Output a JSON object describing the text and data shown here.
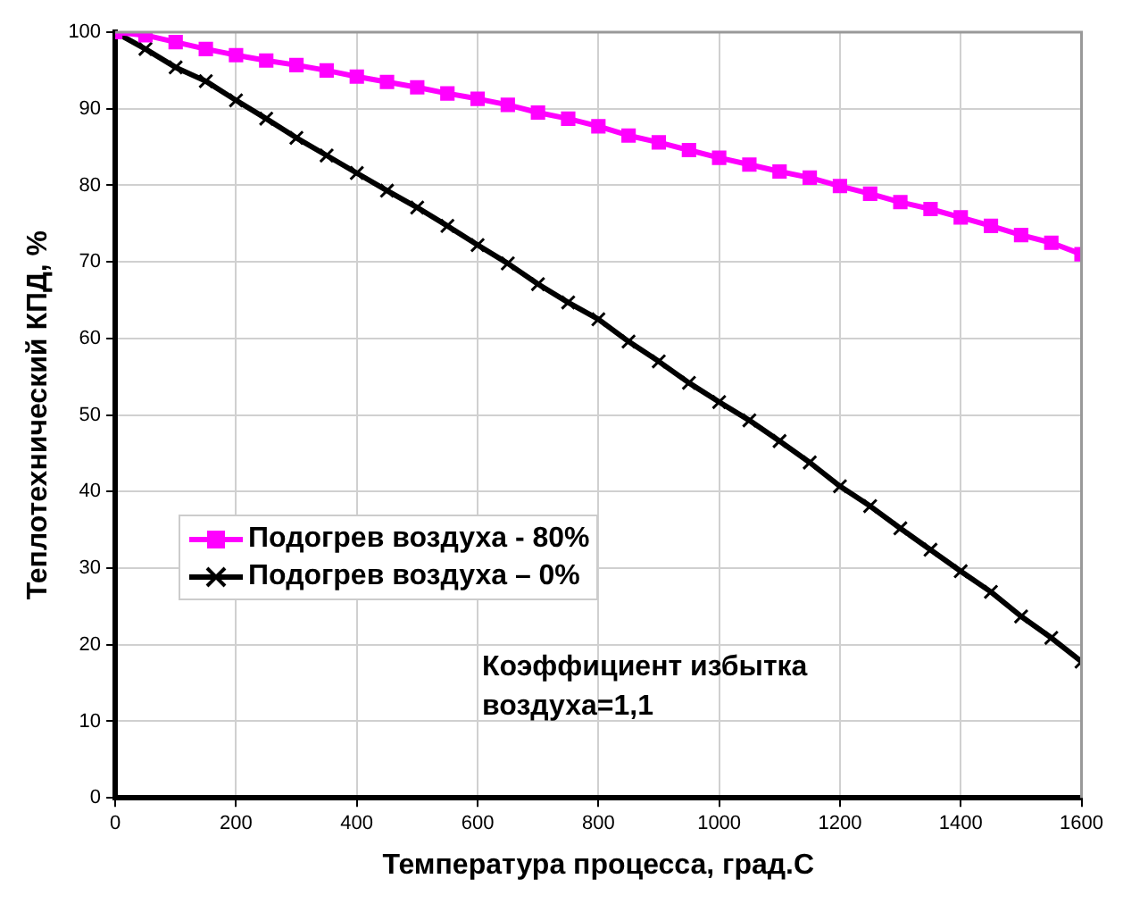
{
  "chart_data": {
    "type": "line",
    "xlabel": "Температура процесса, град.С",
    "ylabel": "Теплотехнический КПД, %",
    "x": [
      0,
      50,
      100,
      150,
      200,
      250,
      300,
      350,
      400,
      450,
      500,
      550,
      600,
      650,
      700,
      750,
      800,
      850,
      900,
      950,
      1000,
      1050,
      1100,
      1150,
      1200,
      1250,
      1300,
      1350,
      1400,
      1450,
      1500,
      1550,
      1600
    ],
    "series": [
      {
        "name": "Подогрев воздуха - 80%",
        "color": "#ff00ff",
        "marker": "square",
        "values": [
          100,
          99.6,
          98.7,
          97.8,
          97,
          96.3,
          95.7,
          95,
          94.2,
          93.5,
          92.8,
          92,
          91.3,
          90.5,
          89.5,
          88.7,
          87.7,
          86.5,
          85.6,
          84.6,
          83.6,
          82.7,
          81.8,
          81,
          79.9,
          78.9,
          77.8,
          76.9,
          75.8,
          74.7,
          73.5,
          72.5,
          71
        ]
      },
      {
        "name": "Подогрев воздуха – 0%",
        "color": "#000000",
        "marker": "cross",
        "values": [
          100,
          97.8,
          95.4,
          93.6,
          91.1,
          88.7,
          86.2,
          83.9,
          81.6,
          79.3,
          77.1,
          74.7,
          72.2,
          69.8,
          67.1,
          64.7,
          62.5,
          59.6,
          57,
          54.2,
          51.7,
          49.3,
          46.6,
          43.8,
          40.7,
          38.1,
          35.2,
          32.4,
          29.6,
          26.9,
          23.7,
          20.9,
          17.8
        ]
      }
    ],
    "xlim": [
      0,
      1600
    ],
    "xticks": [
      0,
      200,
      400,
      600,
      800,
      1000,
      1200,
      1400,
      1600
    ],
    "ylim": [
      0,
      100
    ],
    "yticks": [
      0,
      10,
      20,
      30,
      40,
      50,
      60,
      70,
      80,
      90,
      100
    ],
    "grid": true,
    "legend": "left",
    "annotations": [
      "Коэффициент избытка воздуха=1,1"
    ]
  }
}
